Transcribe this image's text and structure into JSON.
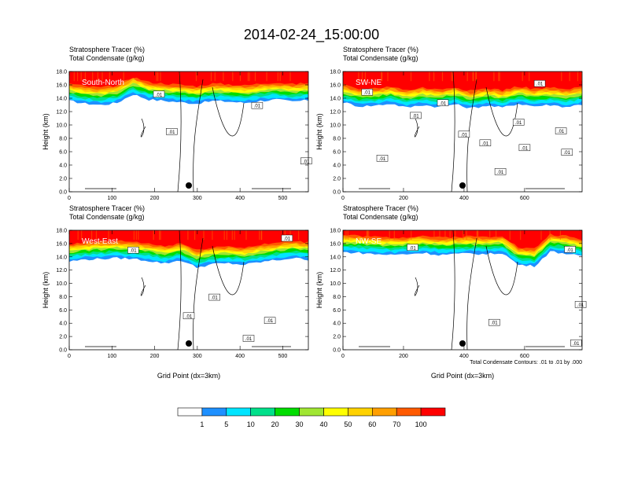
{
  "figure": {
    "title": "2014-02-24_15:00:00",
    "footnote": "Total Condensate Contours: .01 to .01 by .000"
  },
  "colors": {
    "fill_levels": [
      "#ffffff",
      "#1e90ff",
      "#00e5ff",
      "#00e08a",
      "#00dd00",
      "#a0e632",
      "#ffff00",
      "#ffd200",
      "#ff9f00",
      "#ff5a00",
      "#ff0000"
    ],
    "contour": "#000000"
  },
  "colorbar": {
    "labels": [
      "1",
      "5",
      "10",
      "20",
      "30",
      "40",
      "50",
      "60",
      "70",
      "100"
    ]
  },
  "chart_data": [
    {
      "type": "heatmap",
      "name": "South-North",
      "header": [
        "Stratosphere Tracer   (%)",
        "Total Condensate   (g/kg)"
      ],
      "xlabel": "",
      "ylabel": "Height (km)",
      "xlim": [
        0,
        560
      ],
      "ylim": [
        0,
        18
      ],
      "xticks": [
        "0",
        "100",
        "200",
        "300",
        "400",
        "500"
      ],
      "yticks": [
        "0.0",
        "2.0",
        "4.0",
        "6.0",
        "8.0",
        "10.0",
        "12.0",
        "14.0",
        "16.0",
        "18.0"
      ],
      "marker_x": 280,
      "tracer_base_km": [
        13.6,
        13.2,
        13.0,
        13.3,
        14.6,
        13.8,
        13.6,
        13.4,
        13.2,
        13.6,
        13.5,
        13.3,
        13.6,
        13.8,
        13.5,
        13.7
      ],
      "contour_labels": [
        {
          "text": ".01",
          "x": 210,
          "y": 14.5
        },
        {
          "text": ".01",
          "x": 440,
          "y": 12.8
        },
        {
          "text": ".01",
          "x": 240,
          "y": 8.9
        },
        {
          "text": ".01",
          "x": 580,
          "y": 4.5
        }
      ]
    },
    {
      "type": "heatmap",
      "name": "SW-NE",
      "header": [
        "Stratosphere Tracer   (%)",
        "Total Condensate   (g/kg)"
      ],
      "xlabel": "",
      "ylabel": "Height (km)",
      "xlim": [
        0,
        790
      ],
      "ylim": [
        0,
        18
      ],
      "xticks": [
        "0",
        "200",
        "400",
        "600"
      ],
      "yticks": [
        "0.0",
        "2.0",
        "4.0",
        "6.0",
        "8.0",
        "10.0",
        "12.0",
        "14.0",
        "16.0",
        "18.0"
      ],
      "marker_x": 395,
      "tracer_base_km": [
        13.4,
        12.8,
        12.9,
        13.2,
        12.6,
        13.0,
        12.7,
        13.1,
        12.5,
        12.9,
        12.6,
        13.2,
        12.8,
        13.0,
        12.7,
        13.1
      ],
      "contour_labels": [
        {
          "text": ".01",
          "x": 80,
          "y": 14.8
        },
        {
          "text": ".01",
          "x": 330,
          "y": 13.2
        },
        {
          "text": ".01",
          "x": 240,
          "y": 11.3
        },
        {
          "text": ".01",
          "x": 650,
          "y": 16.1
        },
        {
          "text": ".01",
          "x": 580,
          "y": 10.3
        },
        {
          "text": ".01",
          "x": 470,
          "y": 7.2
        },
        {
          "text": ".01",
          "x": 720,
          "y": 9.0
        },
        {
          "text": ".01",
          "x": 600,
          "y": 6.5
        },
        {
          "text": ".01",
          "x": 740,
          "y": 5.8
        },
        {
          "text": ".01",
          "x": 520,
          "y": 2.9
        },
        {
          "text": ".01",
          "x": 130,
          "y": 4.9
        },
        {
          "text": ".01",
          "x": 400,
          "y": 8.5
        }
      ]
    },
    {
      "type": "heatmap",
      "name": "West-East",
      "header": [
        "Stratosphere Tracer   (%)",
        "Total Condensate   (g/kg)"
      ],
      "xlabel": "Grid Point (dx=3km)",
      "ylabel": "Height (km)",
      "xlim": [
        0,
        560
      ],
      "ylim": [
        0,
        18
      ],
      "xticks": [
        "0",
        "100",
        "200",
        "300",
        "400",
        "500"
      ],
      "yticks": [
        "0.0",
        "2.0",
        "4.0",
        "6.0",
        "8.0",
        "10.0",
        "12.0",
        "14.0",
        "16.0",
        "18.0"
      ],
      "marker_x": 280,
      "tracer_base_km": [
        13.3,
        13.6,
        13.7,
        13.8,
        13.7,
        13.4,
        13.0,
        13.5,
        12.4,
        12.9,
        13.0,
        12.8,
        13.2,
        13.5,
        13.8,
        13.6
      ],
      "contour_labels": [
        {
          "text": ".01",
          "x": 510,
          "y": 16.7
        },
        {
          "text": ".01",
          "x": 150,
          "y": 14.9
        },
        {
          "text": ".01",
          "x": 340,
          "y": 7.8
        },
        {
          "text": ".01",
          "x": 280,
          "y": 5.0
        },
        {
          "text": ".01",
          "x": 470,
          "y": 4.3
        },
        {
          "text": ".01",
          "x": 420,
          "y": 1.6
        }
      ]
    },
    {
      "type": "heatmap",
      "name": "NW-SE",
      "header": [
        "Stratosphere Tracer   (%)",
        "Total Condensate   (g/kg)"
      ],
      "xlabel": "Grid Point (dx=3km)",
      "ylabel": "Height (km)",
      "xlim": [
        0,
        790
      ],
      "ylim": [
        0,
        18
      ],
      "xticks": [
        "0",
        "200",
        "400",
        "600"
      ],
      "yticks": [
        "0.0",
        "2.0",
        "4.0",
        "6.0",
        "8.0",
        "10.0",
        "12.0",
        "14.0",
        "16.0",
        "18.0"
      ],
      "marker_x": 395,
      "tracer_base_km": [
        14.7,
        14.6,
        14.4,
        14.3,
        14.4,
        14.6,
        14.3,
        14.4,
        14.5,
        14.4,
        14.6,
        12.8,
        12.6,
        14.8,
        14.5,
        14.0
      ],
      "contour_labels": [
        {
          "text": ".01",
          "x": 230,
          "y": 15.3
        },
        {
          "text": ".01",
          "x": 750,
          "y": 15.0
        },
        {
          "text": ".01",
          "x": 1000,
          "y": 6.7
        },
        {
          "text": ".01",
          "x": 500,
          "y": 4.0
        },
        {
          "text": ".01",
          "x": 770,
          "y": 0.9
        }
      ]
    }
  ]
}
